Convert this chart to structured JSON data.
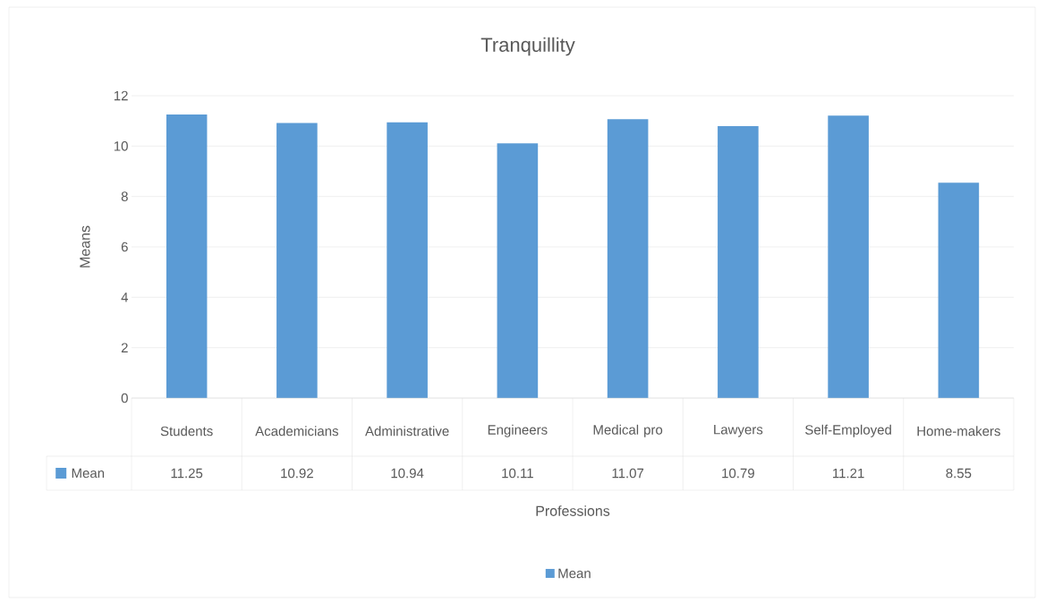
{
  "chart_data": {
    "type": "bar",
    "title": "Tranquillity",
    "xlabel": "Professions",
    "ylabel": "Means",
    "categories": [
      "Students",
      "Academicians",
      "Administrative",
      "Engineers",
      "Medical pro",
      "Lawyers",
      "Self-Employed",
      "Home-makers"
    ],
    "series": [
      {
        "name": "Mean",
        "color": "#5b9bd5",
        "values": [
          11.25,
          10.92,
          10.94,
          10.11,
          11.07,
          10.79,
          11.21,
          8.55
        ]
      }
    ],
    "ylim": [
      0,
      12
    ],
    "yticks": [
      0,
      2,
      4,
      6,
      8,
      10,
      12
    ],
    "grid": "y",
    "legend": "bottom",
    "data_labels": true
  }
}
